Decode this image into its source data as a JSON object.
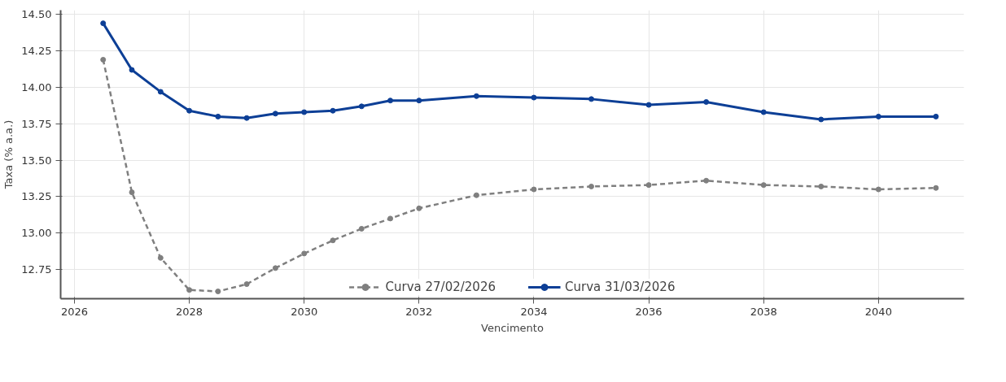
{
  "chart_data": {
    "type": "line",
    "xlabel": "Vencimento",
    "ylabel": "Taxa (% a.a.)",
    "x": [
      2026.5,
      2027,
      2027.5,
      2028,
      2028.5,
      2029,
      2029.5,
      2030,
      2030.5,
      2031,
      2031.5,
      2032,
      2033,
      2034,
      2035,
      2036,
      2037,
      2038,
      2039,
      2040,
      2041
    ],
    "series": [
      {
        "name": "Curva 27/02/2026",
        "color": "#7f7f7f",
        "line_style": "dashed",
        "values": [
          14.19,
          13.28,
          12.83,
          12.61,
          12.6,
          12.65,
          12.76,
          12.86,
          12.95,
          13.03,
          13.1,
          13.17,
          13.26,
          13.3,
          13.32,
          13.33,
          13.36,
          13.33,
          13.32,
          13.3,
          13.31
        ]
      },
      {
        "name": "Curva 31/03/2026",
        "color": "#0d3f96",
        "line_style": "solid",
        "values": [
          14.44,
          14.12,
          13.97,
          13.84,
          13.8,
          13.79,
          13.82,
          13.83,
          13.84,
          13.87,
          13.91,
          13.91,
          13.94,
          13.93,
          13.92,
          13.88,
          13.9,
          13.83,
          13.78,
          13.8,
          13.8
        ]
      }
    ],
    "xlim": [
      2025.76,
      2041.49
    ],
    "ylim": [
      12.55,
      14.53
    ],
    "xticks": [
      2026,
      2028,
      2030,
      2032,
      2034,
      2036,
      2038,
      2040
    ],
    "yticks": [
      {
        "value": 12.75,
        "label": "12.75"
      },
      {
        "value": 13.0,
        "label": "13.00"
      },
      {
        "value": 13.25,
        "label": "13.25"
      },
      {
        "value": 13.5,
        "label": "13.50"
      },
      {
        "value": 13.75,
        "label": "13.75"
      },
      {
        "value": 14.0,
        "label": "14.00"
      },
      {
        "value": 14.25,
        "label": "14.25"
      },
      {
        "value": 14.5,
        "label": "14.50"
      }
    ],
    "grid": true,
    "legend": "bottom",
    "marker": "circle"
  }
}
